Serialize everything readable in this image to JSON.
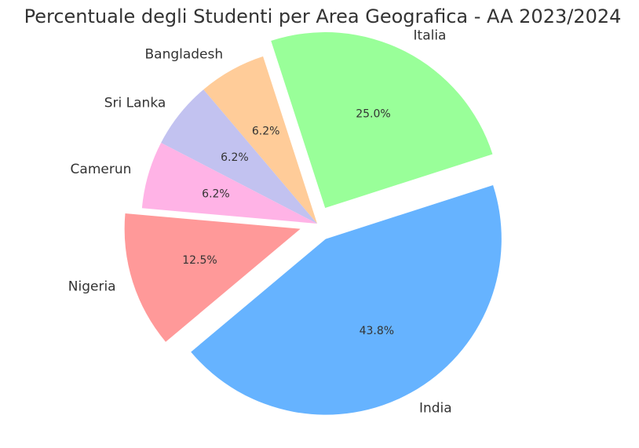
{
  "chart_data": {
    "type": "pie",
    "title": "Percentuale degli Studenti per Area Geografica - AA 2023/2024",
    "slices": [
      {
        "label": "India",
        "value": 43.8,
        "pct_label": "43.8%",
        "color": "#66b3ff",
        "exploded": true
      },
      {
        "label": "Italia",
        "value": 25.0,
        "pct_label": "25.0%",
        "color": "#99ff99",
        "exploded": true
      },
      {
        "label": "Bangladesh",
        "value": 6.2,
        "pct_label": "6.2%",
        "color": "#ffcc99",
        "exploded": false
      },
      {
        "label": "Sri Lanka",
        "value": 6.2,
        "pct_label": "6.2%",
        "color": "#c2c2f0",
        "exploded": false
      },
      {
        "label": "Camerun",
        "value": 6.2,
        "pct_label": "6.2%",
        "color": "#ffb3e6",
        "exploded": false
      },
      {
        "label": "Nigeria",
        "value": 12.5,
        "pct_label": "12.5%",
        "color": "#ff9999",
        "exploded": true
      }
    ]
  }
}
